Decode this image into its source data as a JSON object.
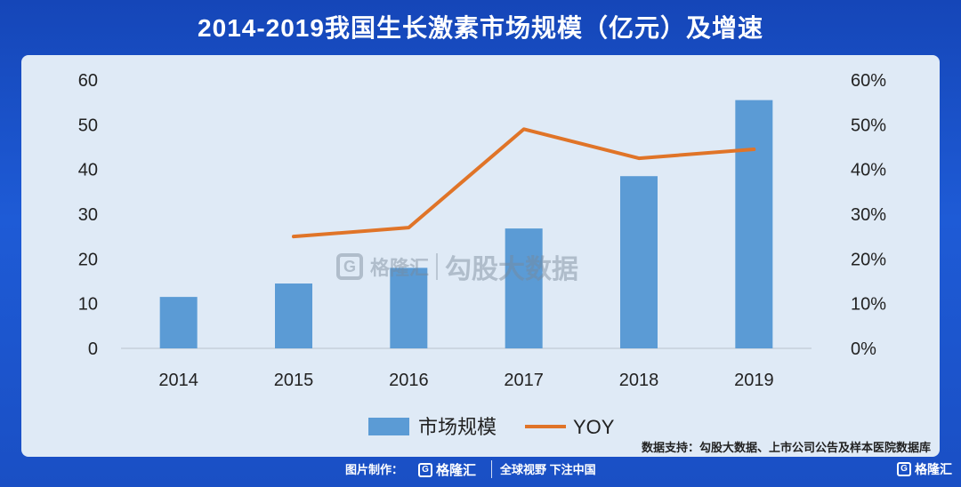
{
  "title": "2014-2019我国生长激素市场规模（亿元）及增速",
  "chart_data": {
    "type": "bar+line",
    "categories": [
      "2014",
      "2015",
      "2016",
      "2017",
      "2018",
      "2019"
    ],
    "series": [
      {
        "name": "市场规模",
        "type": "bar",
        "axis": "left",
        "values": [
          11.5,
          14.5,
          18,
          26.8,
          38.5,
          55.5
        ]
      },
      {
        "name": "YOY",
        "type": "line",
        "axis": "right",
        "values": [
          null,
          25,
          27,
          49,
          42.5,
          44.5
        ]
      }
    ],
    "yleft": {
      "min": 0,
      "max": 60,
      "ticks": [
        "0",
        "10",
        "20",
        "30",
        "40",
        "50",
        "60"
      ]
    },
    "yright": {
      "min": 0,
      "max": 60,
      "ticks": [
        "0%",
        "10%",
        "20%",
        "30%",
        "40%",
        "50%",
        "60%"
      ]
    },
    "legend_position": "bottom",
    "colors": {
      "bar": "#5b9bd5",
      "line": "#e07428"
    }
  },
  "watermark": {
    "brand": "格隆汇",
    "text": "勾股大数据"
  },
  "source": "数据支持：勾股大数据、上市公司公告及样本医院数据库",
  "footer": {
    "credit": "图片制作：",
    "brand": "格隆汇",
    "slogan": "全球视野 下注中国",
    "brand_right": "格隆汇"
  }
}
